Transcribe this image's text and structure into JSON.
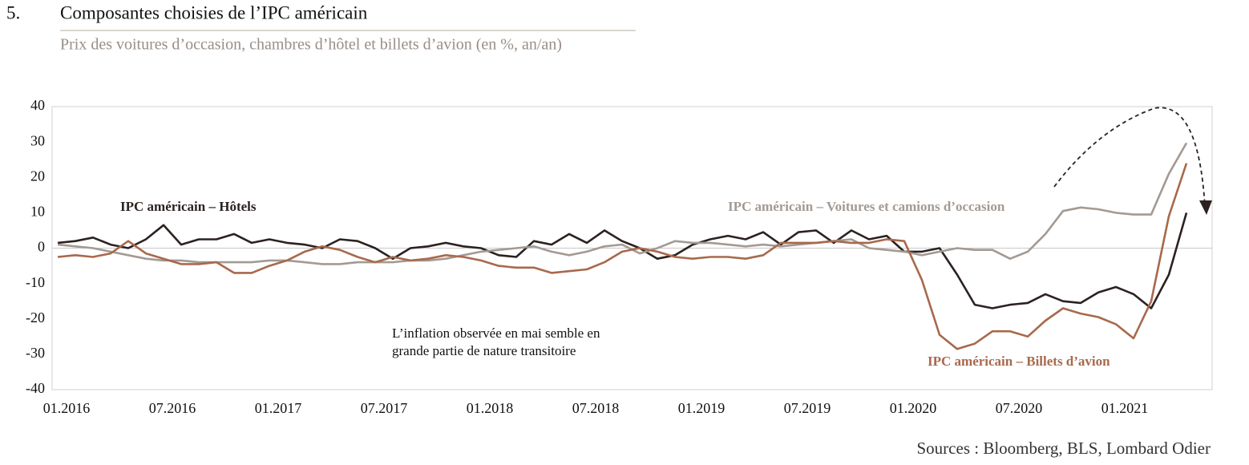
{
  "chart_data": {
    "type": "line",
    "number": "5.",
    "title": "Composantes choisies de l’IPC américain",
    "subtitle": "Prix des voitures d’occasion, chambres d’hôtel et billets d’avion (en %, an/an)",
    "source": "Sources : Bloomberg, BLS, Lombard Odier",
    "categories": [
      "01.2016",
      null,
      null,
      null,
      null,
      null,
      "07.2016",
      null,
      null,
      null,
      null,
      null,
      "01.2017",
      null,
      null,
      null,
      null,
      null,
      "07.2017",
      null,
      null,
      null,
      null,
      null,
      "01.2018",
      null,
      null,
      null,
      null,
      null,
      "07.2018",
      null,
      null,
      null,
      null,
      null,
      "01.2019",
      null,
      null,
      null,
      null,
      null,
      "07.2019",
      null,
      null,
      null,
      null,
      null,
      "01.2020",
      null,
      null,
      null,
      null,
      null,
      "07.2020",
      null,
      null,
      null,
      null,
      null,
      "01.2021",
      null,
      null,
      null,
      null
    ],
    "series": [
      {
        "name": "IPC américain – Hôtels",
        "color": "#2b2220",
        "label_pos": [
          150,
          259
        ],
        "values": [
          1.5,
          2,
          3,
          1,
          0,
          2.5,
          6.5,
          1,
          2.5,
          2.5,
          4,
          1.5,
          2.5,
          1.5,
          1,
          0,
          2.5,
          2,
          0,
          -3,
          0,
          0.5,
          1.5,
          0.5,
          0,
          -2,
          -2.5,
          2,
          1,
          4,
          1.5,
          5,
          2,
          0,
          -3,
          -2,
          1,
          2.5,
          3.5,
          2.5,
          4.5,
          1,
          4.5,
          5,
          1.5,
          5,
          2.5,
          3.5,
          -1,
          -1,
          0,
          -7.5,
          -16,
          -17,
          -16,
          -15.5,
          -13,
          -15,
          -15.5,
          -12.5,
          -11,
          -13,
          -17,
          -7.5,
          10
        ]
      },
      {
        "name": "IPC américain – Voitures et camions d’occasion",
        "color": "#a39a94",
        "label_pos": [
          908,
          259
        ],
        "values": [
          1,
          0.5,
          0,
          -1,
          -2,
          -3,
          -3.5,
          -3.5,
          -4,
          -4,
          -4,
          -4,
          -3.5,
          -3.5,
          -4,
          -4.5,
          -4.5,
          -4,
          -4,
          -4,
          -3.5,
          -3.5,
          -3,
          -2,
          -1,
          -0.5,
          0,
          0.5,
          -1,
          -2,
          -1,
          0.5,
          1,
          -1.5,
          0,
          2,
          1.5,
          1.5,
          1,
          0.5,
          1,
          0.5,
          1,
          1.5,
          2,
          2.5,
          0,
          -0.5,
          -1,
          -2,
          -1,
          0,
          -0.5,
          -0.5,
          -3,
          -1,
          4,
          10.5,
          11.5,
          11,
          10,
          9.5,
          9.5,
          21,
          29.7
        ]
      },
      {
        "name": "IPC américain – Billets d’avion",
        "color": "#a8694c",
        "label_pos": [
          1157,
          452
        ],
        "values": [
          -2.5,
          -2,
          -2.5,
          -1.5,
          2,
          -1.5,
          -3,
          -4.5,
          -4.5,
          -4,
          -7,
          -7,
          -5,
          -3.5,
          -1,
          0.5,
          -0.5,
          -2.5,
          -4,
          -2.5,
          -3.5,
          -3,
          -2,
          -2.5,
          -3.5,
          -5,
          -5.5,
          -5.5,
          -7,
          -6.5,
          -6,
          -4,
          -1,
          0,
          -1,
          -2.5,
          -3,
          -2.5,
          -2.5,
          -3,
          -2,
          1.5,
          1.5,
          1.5,
          2,
          1.5,
          1.5,
          2.5,
          2,
          -9,
          -24.5,
          -28.5,
          -27,
          -23.5,
          -23.5,
          -25,
          -20.5,
          -17,
          -18.5,
          -19.5,
          -21.5,
          -25.5,
          -15,
          9,
          24
        ]
      }
    ],
    "note": [
      "L’inflation observée en mai semble en",
      "grande partie de nature transitoire"
    ],
    "ylim": [
      -40,
      40
    ],
    "yticks": [
      -40,
      -30,
      -20,
      -10,
      0,
      10,
      20,
      30,
      40
    ],
    "grid": false
  }
}
